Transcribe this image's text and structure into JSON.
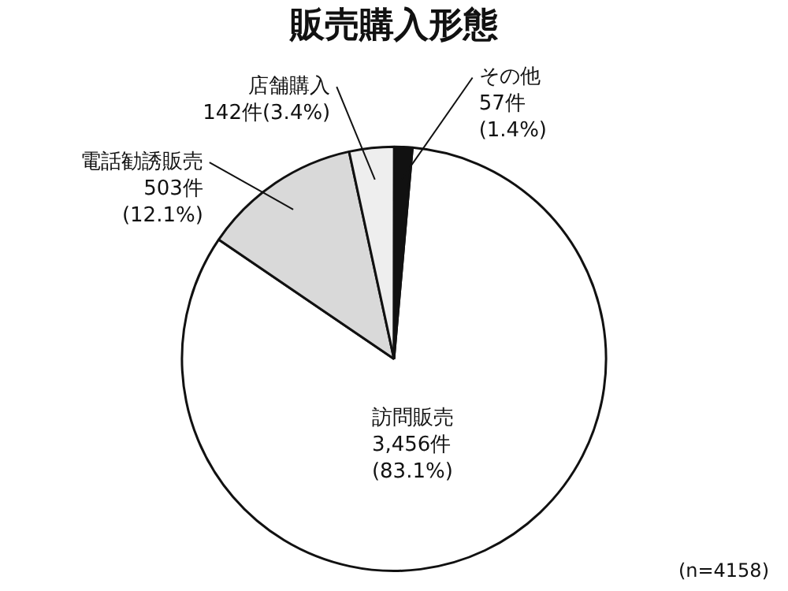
{
  "chart_data": {
    "type": "pie",
    "title": "販売購入形態",
    "categories": [
      "訪問販売",
      "電話勧誘販売",
      "店舗購入",
      "その他"
    ],
    "values": [
      3456,
      503,
      142,
      57
    ],
    "colors": [
      "#ffffff",
      "#d9d9d9",
      "#eeeeee",
      "#111111"
    ],
    "value_labels": [
      "3,456件\n(83.1%)",
      "503件\n(12.1%)",
      "142件(3.4%)",
      "57件\n(1.4%)"
    ],
    "annotations": [
      "(n=4158)"
    ],
    "legend": false
  }
}
